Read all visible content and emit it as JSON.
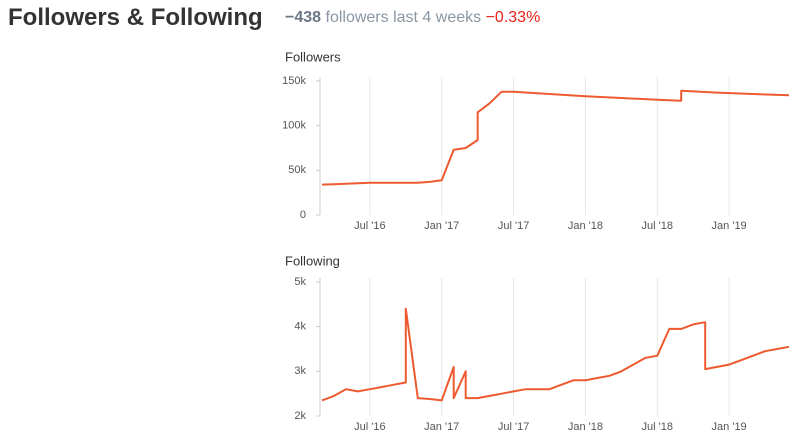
{
  "header": {
    "title": "Followers & Following",
    "change": "−438",
    "change_label": "followers last 4 weeks",
    "change_percent": "−0.33%"
  },
  "chart_data": [
    {
      "type": "line",
      "title": "Followers",
      "x": [
        "2016-03",
        "2016-04",
        "2016-05",
        "2016-06",
        "2016-07",
        "2016-08",
        "2016-09",
        "2016-10",
        "2016-11",
        "2016-12",
        "2017-01",
        "2017-02",
        "2017-03",
        "2017-04",
        "2017-04",
        "2017-05",
        "2017-06",
        "2017-07",
        "2017-10",
        "2018-01",
        "2018-04",
        "2018-07",
        "2018-09",
        "2018-09",
        "2018-12",
        "2019-03",
        "2019-06"
      ],
      "series": [
        {
          "color": "#ee5a2f",
          "values": [
            34000,
            34500,
            35000,
            35500,
            36000,
            36000,
            36000,
            36000,
            36000,
            37000,
            39000,
            73000,
            75000,
            84000,
            115000,
            125000,
            138000,
            138000,
            135500,
            133000,
            131000,
            129000,
            128000,
            139000,
            137000,
            135500,
            134000
          ]
        }
      ],
      "xlim": [
        "2016-03",
        "2019-06"
      ],
      "xticks": [
        {
          "value": "2016-07",
          "label": "Jul '16"
        },
        {
          "value": "2017-01",
          "label": "Jan '17"
        },
        {
          "value": "2017-07",
          "label": "Jul '17"
        },
        {
          "value": "2018-01",
          "label": "Jan '18"
        },
        {
          "value": "2018-07",
          "label": "Jul '18"
        },
        {
          "value": "2019-01",
          "label": "Jan '19"
        }
      ],
      "ylim": [
        0,
        150000
      ],
      "yticks": [
        0,
        {
          "value": 50000,
          "label": "50k"
        },
        {
          "value": 100000,
          "label": "100k"
        },
        {
          "value": 150000,
          "label": "150k"
        }
      ],
      "grid": true
    },
    {
      "type": "line",
      "title": "Following",
      "x": [
        "2016-03",
        "2016-04",
        "2016-05",
        "2016-06",
        "2016-07",
        "2016-08",
        "2016-09",
        "2016-10",
        "2016-10",
        "2016-11",
        "2016-12",
        "2017-01",
        "2017-02",
        "2017-02",
        "2017-03",
        "2017-03",
        "2017-04",
        "2017-05",
        "2017-06",
        "2017-07",
        "2017-08",
        "2017-09",
        "2017-10",
        "2017-11",
        "2017-12",
        "2018-01",
        "2018-02",
        "2018-03",
        "2018-04",
        "2018-05",
        "2018-06",
        "2018-07",
        "2018-08",
        "2018-09",
        "2018-10",
        "2018-11",
        "2018-11",
        "2018-12",
        "2019-01",
        "2019-02",
        "2019-03",
        "2019-04",
        "2019-05",
        "2019-06"
      ],
      "series": [
        {
          "color": "#ee5a2f",
          "values": [
            2350,
            2450,
            2600,
            2550,
            2600,
            2650,
            2700,
            2750,
            4400,
            2400,
            2380,
            2350,
            3100,
            2400,
            3000,
            2400,
            2400,
            2450,
            2500,
            2550,
            2600,
            2600,
            2600,
            2700,
            2800,
            2800,
            2850,
            2900,
            3000,
            3150,
            3300,
            3350,
            3950,
            3950,
            4050,
            4100,
            3050,
            3100,
            3150,
            3250,
            3350,
            3450,
            3500,
            3550
          ]
        }
      ],
      "xlim": [
        "2016-03",
        "2019-06"
      ],
      "xticks": [
        {
          "value": "2016-07",
          "label": "Jul '16"
        },
        {
          "value": "2017-01",
          "label": "Jan '17"
        },
        {
          "value": "2017-07",
          "label": "Jul '17"
        },
        {
          "value": "2018-01",
          "label": "Jan '18"
        },
        {
          "value": "2018-07",
          "label": "Jul '18"
        },
        {
          "value": "2019-01",
          "label": "Jan '19"
        }
      ],
      "ylim": [
        2000,
        5000
      ],
      "yticks": [
        {
          "value": 2000,
          "label": "2k"
        },
        {
          "value": 3000,
          "label": "3k"
        },
        {
          "value": 4000,
          "label": "4k"
        },
        {
          "value": 5000,
          "label": "5k"
        }
      ],
      "grid": true
    }
  ]
}
